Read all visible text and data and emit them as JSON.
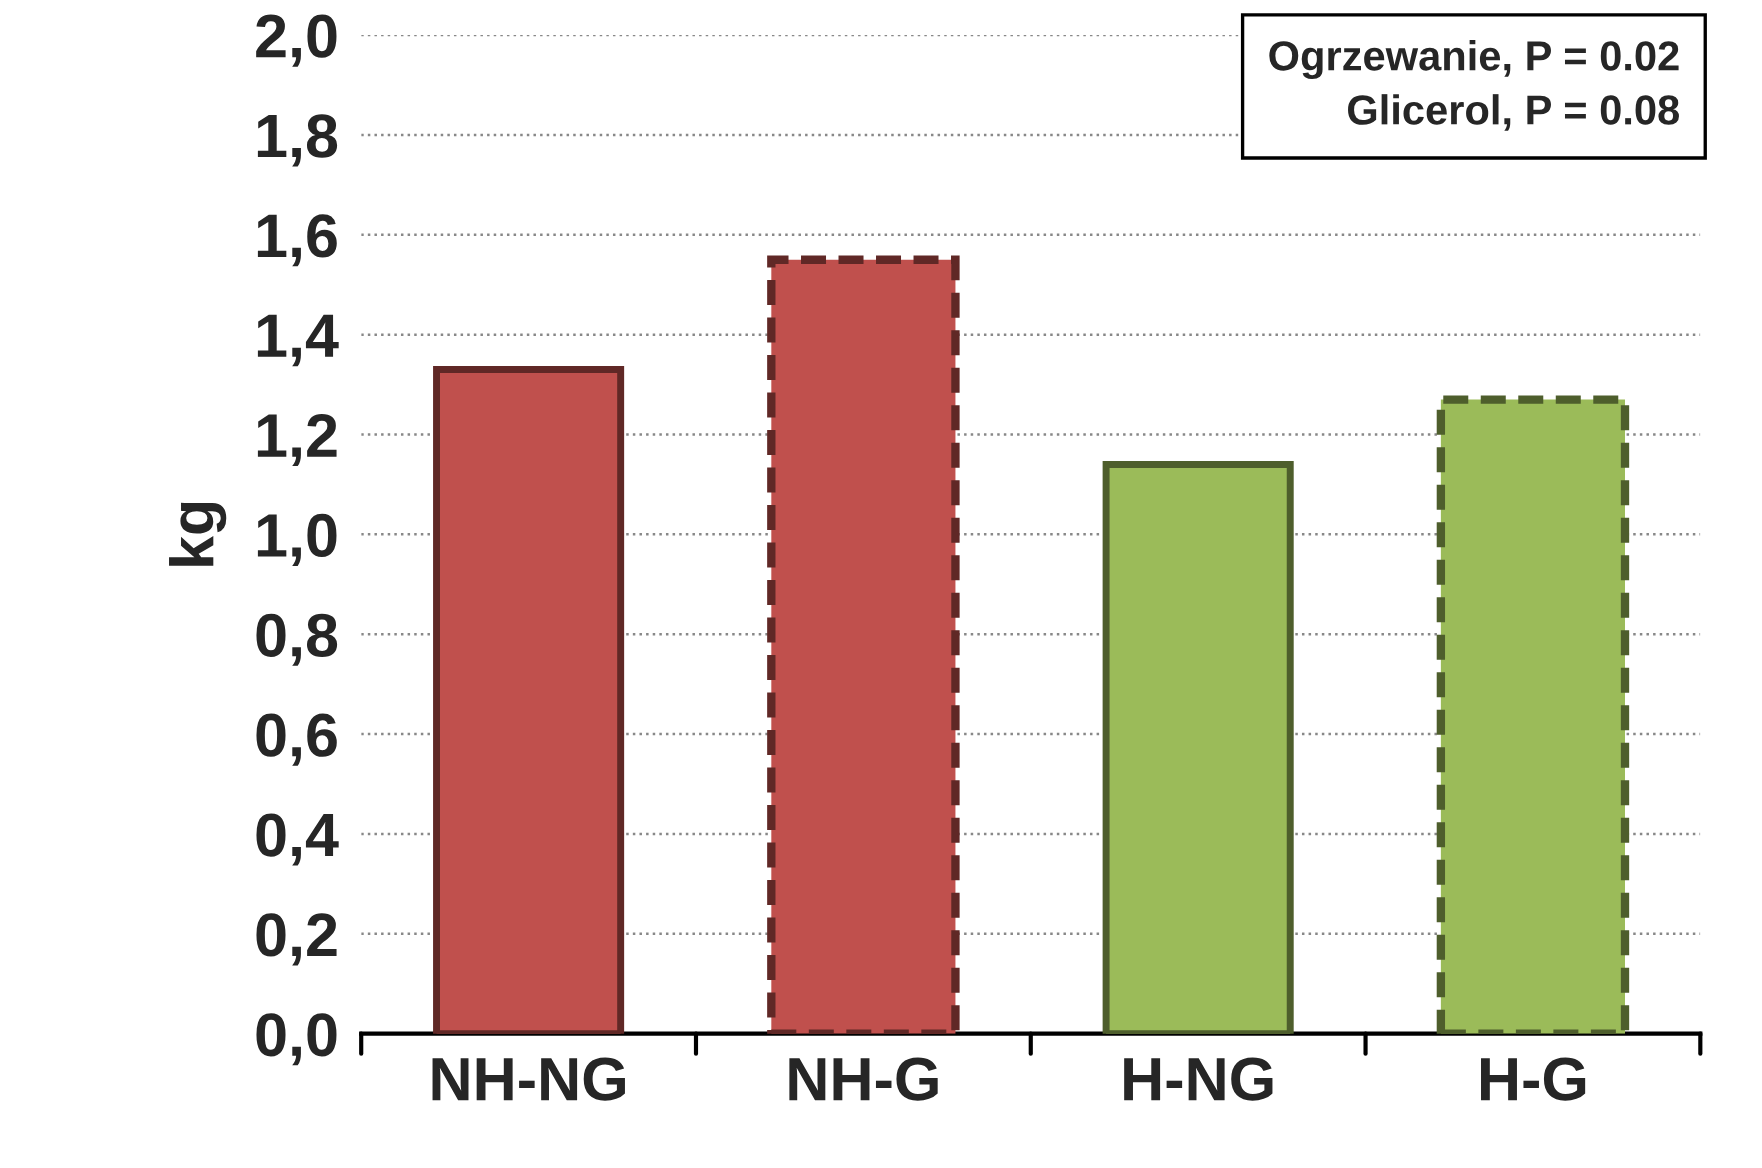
{
  "chart_data": {
    "type": "bar",
    "ylabel": "kg",
    "categories": [
      "NH-NG",
      "NH-G",
      "H-NG",
      "H-G"
    ],
    "series": [
      {
        "colors": [
          "#c0504d",
          null,
          "#9bbb59",
          null
        ],
        "values": [
          1.33,
          null,
          1.14,
          null
        ],
        "line_style": "solid"
      },
      {
        "colors": [
          null,
          "#c0504d",
          null,
          "#9bbb59"
        ],
        "values": [
          null,
          1.55,
          null,
          1.27
        ],
        "line_style": "dashed"
      }
    ],
    "ylim": [
      0,
      2.0
    ],
    "yticks": [
      {
        "value": 0,
        "label": "0,0"
      },
      {
        "value": 0.2,
        "label": "0,2"
      },
      {
        "value": 0.4,
        "label": "0,4"
      },
      {
        "value": 0.6,
        "label": "0,6"
      },
      {
        "value": 0.8,
        "label": "0,8"
      },
      {
        "value": 1.0,
        "label": "1,0"
      },
      {
        "value": 1.2,
        "label": "1,2"
      },
      {
        "value": 1.4,
        "label": "1,4"
      },
      {
        "value": 1.6,
        "label": "1,6"
      },
      {
        "value": 1.8,
        "label": "1,8"
      },
      {
        "value": 2.0,
        "label": "2,0"
      }
    ],
    "grid": "y",
    "annotations": [
      "Ogrzewanie, P = 0.02\nGlicerol, P = 0.08"
    ]
  }
}
